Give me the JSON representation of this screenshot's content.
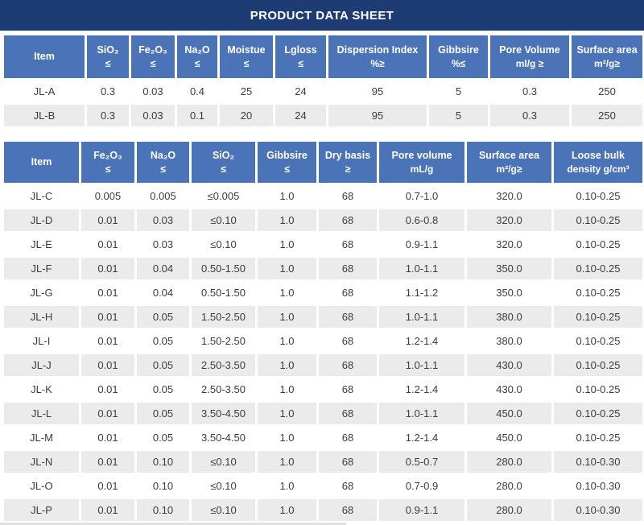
{
  "title": "PRODUCT DATA SHEET",
  "colors": {
    "title_bar": "#1e3c74",
    "header_cell": "#4b74b8",
    "row_alt": "#ebebeb",
    "row_white": "#ffffff",
    "data_text": "#3c3c3c",
    "header_text": "#ffffff"
  },
  "table1": {
    "columns": [
      {
        "label": "Item",
        "constraint": ""
      },
      {
        "label": "SiO₂",
        "constraint": "≤"
      },
      {
        "label": "Fe₂O₃",
        "constraint": "≤"
      },
      {
        "label": "Na₂O",
        "constraint": "≤"
      },
      {
        "label": "Moistue",
        "constraint": "≤"
      },
      {
        "label": "Lgloss",
        "constraint": "≤"
      },
      {
        "label": "Dispersion Index",
        "constraint": "%≥"
      },
      {
        "label": "Gibbsire",
        "constraint": "%≤"
      },
      {
        "label": "Pore Volume",
        "constraint": "ml/g ≥"
      },
      {
        "label": "Surface area",
        "constraint": "m²/g≥"
      }
    ],
    "rows": [
      [
        "JL-A",
        "0.3",
        "0.03",
        "0.4",
        "25",
        "24",
        "95",
        "5",
        "0.3",
        "250"
      ],
      [
        "JL-B",
        "0.3",
        "0.03",
        "0.1",
        "20",
        "24",
        "95",
        "5",
        "0.3",
        "250"
      ]
    ]
  },
  "table2": {
    "columns": [
      {
        "label": "Item",
        "constraint": ""
      },
      {
        "label": "Fe₂O₃",
        "constraint": "≤"
      },
      {
        "label": "Na₂O",
        "constraint": "≤"
      },
      {
        "label": "SiO₂",
        "constraint": "≤"
      },
      {
        "label": "Gibbsire",
        "constraint": "≤"
      },
      {
        "label": "Dry basis",
        "constraint": "≥"
      },
      {
        "label": "Pore volume",
        "constraint": "mL/g"
      },
      {
        "label": "Surface area",
        "constraint": "m²/g≥"
      },
      {
        "label": "Loose bulk",
        "constraint": "density g/cm³"
      }
    ],
    "rows": [
      [
        "JL-C",
        "0.005",
        "0.005",
        "≤0.005",
        "1.0",
        "68",
        "0.7-1.0",
        "320.0",
        "0.10-0.25"
      ],
      [
        "JL-D",
        "0.01",
        "0.03",
        "≤0.10",
        "1.0",
        "68",
        "0.6-0.8",
        "320.0",
        "0.10-0.25"
      ],
      [
        "JL-E",
        "0.01",
        "0.03",
        "≤0.10",
        "1.0",
        "68",
        "0.9-1.1",
        "320.0",
        "0.10-0.25"
      ],
      [
        "JL-F",
        "0.01",
        "0.04",
        "0.50-1.50",
        "1.0",
        "68",
        "1.0-1.1",
        "350.0",
        "0.10-0.25"
      ],
      [
        "JL-G",
        "0.01",
        "0.04",
        "0.50-1.50",
        "1.0",
        "68",
        "1.1-1.2",
        "350.0",
        "0.10-0.25"
      ],
      [
        "JL-H",
        "0.01",
        "0.05",
        "1.50-2.50",
        "1.0",
        "68",
        "1.0-1.1",
        "380.0",
        "0.10-0.25"
      ],
      [
        "JL-I",
        "0.01",
        "0.05",
        "1.50-2.50",
        "1.0",
        "68",
        "1.2-1.4",
        "380.0",
        "0.10-0.25"
      ],
      [
        "JL-J",
        "0.01",
        "0.05",
        "2.50-3.50",
        "1.0",
        "68",
        "1.0-1.1",
        "430.0",
        "0.10-0.25"
      ],
      [
        "JL-K",
        "0.01",
        "0.05",
        "2.50-3.50",
        "1.0",
        "68",
        "1.2-1.4",
        "430.0",
        "0.10-0.25"
      ],
      [
        "JL-L",
        "0.01",
        "0.05",
        "3.50-4.50",
        "1.0",
        "68",
        "1.0-1.1",
        "450.0",
        "0.10-0.25"
      ],
      [
        "JL-M",
        "0.01",
        "0.05",
        "3.50-4.50",
        "1.0",
        "68",
        "1.2-1.4",
        "450.0",
        "0.10-0.25"
      ],
      [
        "JL-N",
        "0.01",
        "0.10",
        "≤0.10",
        "1.0",
        "68",
        "0.5-0.7",
        "280.0",
        "0.10-0.30"
      ],
      [
        "JL-O",
        "0.01",
        "0.10",
        "≤0.10",
        "1.0",
        "68",
        "0.7-0.9",
        "280.0",
        "0.10-0.30"
      ],
      [
        "JL-P",
        "0.01",
        "0.10",
        "≤0.10",
        "1.0",
        "68",
        "0.9-1.1",
        "280.0",
        "0.10-0.30"
      ]
    ]
  }
}
